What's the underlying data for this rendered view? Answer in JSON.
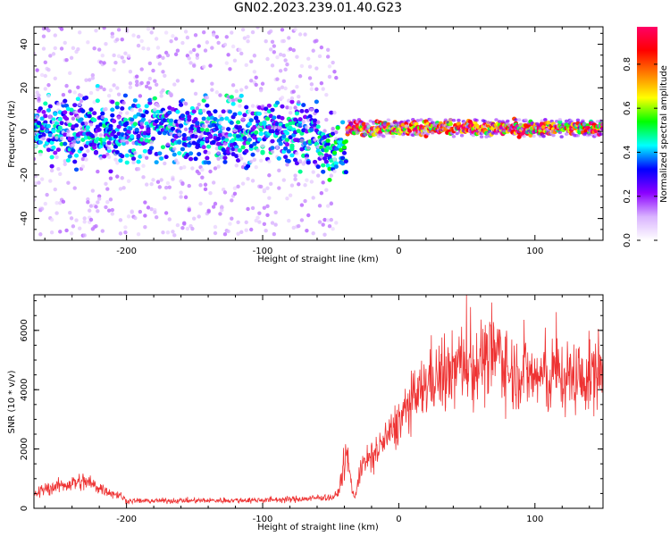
{
  "title": "GN02.2023.239.01.40.G23",
  "chart_data": [
    {
      "type": "heatmap",
      "title": "GN02.2023.239.01.40.G23",
      "xlabel": "Height of straight line (km)",
      "ylabel": "Frequency (Hz)",
      "xlim": [
        -268,
        150
      ],
      "ylim": [
        -50,
        48
      ],
      "x_ticks": [
        -200,
        -100,
        0,
        100
      ],
      "x_tick_labels": [
        "-200",
        "-100",
        "0",
        "100"
      ],
      "y_ticks": [
        -40,
        -20,
        0,
        20,
        40
      ],
      "y_tick_labels": [
        "-40",
        "-20",
        "0",
        "20",
        "40"
      ],
      "colorbar": {
        "label": "Normalized spectral amplitude",
        "range": [
          0,
          0.97
        ],
        "ticks": [
          0.0,
          0.2,
          0.4,
          0.6,
          0.8
        ],
        "tick_labels": [
          "0.0",
          "0.2",
          "0.4",
          "0.6",
          "0.8"
        ],
        "colormap": [
          "#ffffff",
          "#d9b3ff",
          "#8b00ff",
          "#0000ff",
          "#00ffff",
          "#00ff00",
          "#ffff00",
          "#ff8000",
          "#ff0000",
          "#ff0066"
        ]
      },
      "regions": [
        {
          "x_range": [
            -268,
            -60
          ],
          "frequency_center": 0,
          "core_halfwidth_hz": 12,
          "spread_halfwidth_hz": 48,
          "level": 0.35
        },
        {
          "x_range": [
            -60,
            -38
          ],
          "frequency_center": -8,
          "core_halfwidth_hz": 10,
          "spread_halfwidth_hz": 48,
          "level": 0.4
        },
        {
          "x_range": [
            -38,
            150
          ],
          "frequency_center": 1.5,
          "core_halfwidth_hz": 2.5,
          "spread_halfwidth_hz": 4,
          "level": 0.75
        }
      ],
      "grid": false
    },
    {
      "type": "line",
      "xlabel": "Height of straight line (km)",
      "ylabel": "SNR (10 * v/v)",
      "xlim": [
        -268,
        150
      ],
      "ylim": [
        0,
        7200
      ],
      "x_ticks": [
        -200,
        -100,
        0,
        100
      ],
      "x_tick_labels": [
        "-200",
        "-100",
        "0",
        "100"
      ],
      "y_ticks": [
        0,
        2000,
        4000,
        6000
      ],
      "y_tick_labels": [
        "0",
        "2000",
        "4000",
        "6000"
      ],
      "line_color": "#ee3333",
      "series": [
        {
          "x": [
            -268,
            -260,
            -250,
            -240,
            -230,
            -220,
            -210,
            -205,
            -200,
            -180,
            -160,
            -140,
            -120,
            -100,
            -80,
            -65,
            -55,
            -50,
            -45,
            -40,
            -38,
            -36,
            -34,
            -32,
            -30,
            -28,
            -25,
            -20,
            -15,
            -10,
            -5,
            0,
            5,
            10,
            15,
            20,
            25,
            30,
            35,
            40,
            45,
            50,
            55,
            60,
            65,
            70,
            75,
            80,
            85,
            90,
            95,
            100,
            105,
            110,
            115,
            120,
            125,
            130,
            135,
            140,
            145,
            150
          ],
          "values": [
            450,
            650,
            750,
            850,
            900,
            700,
            500,
            450,
            250,
            250,
            260,
            260,
            270,
            280,
            300,
            330,
            380,
            350,
            450,
            1500,
            1800,
            1200,
            600,
            300,
            1000,
            1400,
            1500,
            1700,
            2000,
            2300,
            2600,
            2900,
            3300,
            3600,
            3800,
            4200,
            4500,
            4400,
            4400,
            4600,
            4900,
            5000,
            4700,
            5100,
            4900,
            5200,
            5300,
            4600,
            4600,
            4700,
            4500,
            4400,
            4500,
            4200,
            4700,
            4400,
            4400,
            4500,
            4200,
            4500,
            4600,
            4800
          ]
        }
      ],
      "grid": false
    }
  ]
}
